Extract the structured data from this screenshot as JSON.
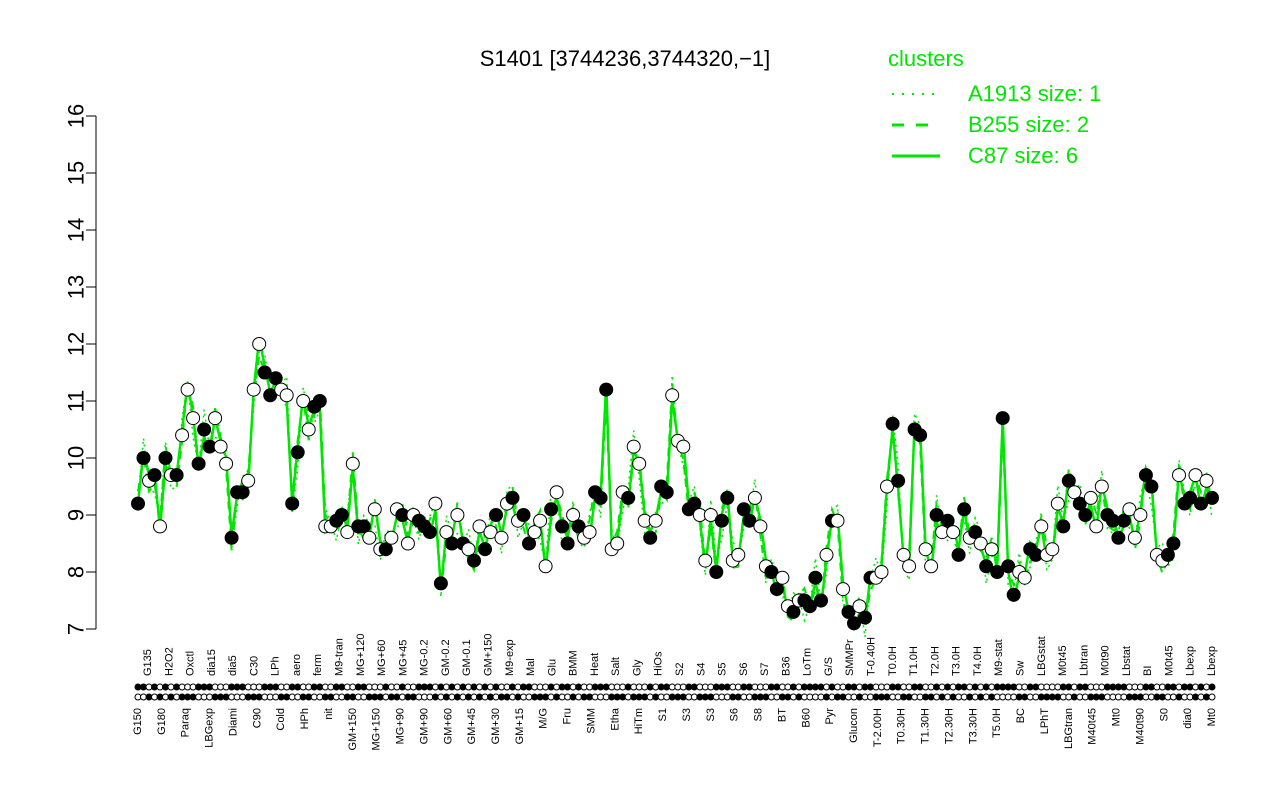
{
  "chart_data": {
    "type": "line",
    "title": "S1401 [3744236,3744320,−1]",
    "xlabel": "",
    "ylabel": "",
    "ylim": [
      7,
      16
    ],
    "y_ticks": [
      7,
      8,
      9,
      10,
      11,
      12,
      13,
      14,
      15,
      16
    ],
    "grid": false,
    "legend": {
      "title": "clusters",
      "placement": "top-right",
      "entries": [
        {
          "label": "A1913 size: 1",
          "style": "dotted"
        },
        {
          "label": "B255 size: 2",
          "style": "dashed"
        },
        {
          "label": "C87 size: 6",
          "style": "solid"
        }
      ]
    },
    "colors": {
      "series": "#00e600",
      "point_dark": "#000000",
      "point_light": "#ffffff"
    },
    "x_labels_top": [
      "G135",
      "H2O2",
      "Oxctl",
      "dia15",
      "dia5",
      "C30",
      "LPh",
      "aero",
      "ferm",
      "M9-tran",
      "MG+120",
      "MG+60",
      "MG+45",
      "MG-0.2",
      "GM-0.2",
      "GM-0.1",
      "GM+150",
      "M9-exp",
      "Mal",
      "Glu",
      "BMM",
      "Heat",
      "Salt",
      "Gly",
      "HiOs",
      "S2",
      "S4",
      "S5",
      "S6",
      "S7",
      "B36",
      "LoTm",
      "G/S",
      "SMMPr",
      "T-0.40H",
      "T0.0H",
      "T1.0H",
      "T2.0H",
      "T3.0H",
      "T4.0H",
      "M9-stat",
      "Sw",
      "LBGstat",
      "M0t45",
      "Lbtran",
      "M0t90",
      "Lbstat",
      "BI",
      "M0t45",
      "Lbexp",
      "Lbexp"
    ],
    "x_labels_bottom": [
      "G150",
      "G180",
      "Paraq",
      "LBGexp",
      "Diami",
      "C90",
      "Cold",
      "HPh",
      "nit",
      "GM+150",
      "MG+150",
      "MG+90",
      "GM+90",
      "GM+60",
      "GM+45",
      "GM+30",
      "GM+15",
      "M/G",
      "Fru",
      "SMM",
      "Etha",
      "HiTm",
      "S1",
      "S3",
      "S3",
      "S6",
      "S8",
      "BT",
      "B60",
      "Pyr",
      "Glucon",
      "T-2.00H",
      "T0.30H",
      "T1.30H",
      "T2.30H",
      "T3.30H",
      "T5.0H",
      "BC",
      "LPhT",
      "LBGtran",
      "M40t45",
      "Mt0",
      "M40t90",
      "S0",
      "dia0",
      "Mt0"
    ],
    "points": [
      {
        "x": 1,
        "y": 9.2,
        "f": 1
      },
      {
        "x": 2,
        "y": 10.0,
        "f": 1
      },
      {
        "x": 3,
        "y": 9.6,
        "f": 0
      },
      {
        "x": 4,
        "y": 9.7,
        "f": 1
      },
      {
        "x": 5,
        "y": 8.8,
        "f": 0
      },
      {
        "x": 6,
        "y": 10.0,
        "f": 1
      },
      {
        "x": 7,
        "y": 9.7,
        "f": 0
      },
      {
        "x": 8,
        "y": 9.7,
        "f": 1
      },
      {
        "x": 9,
        "y": 10.4,
        "f": 0
      },
      {
        "x": 10,
        "y": 11.2,
        "f": 0
      },
      {
        "x": 11,
        "y": 10.7,
        "f": 0
      },
      {
        "x": 12,
        "y": 9.9,
        "f": 1
      },
      {
        "x": 13,
        "y": 10.5,
        "f": 1
      },
      {
        "x": 14,
        "y": 10.2,
        "f": 1
      },
      {
        "x": 15,
        "y": 10.7,
        "f": 0
      },
      {
        "x": 16,
        "y": 10.2,
        "f": 0
      },
      {
        "x": 17,
        "y": 9.9,
        "f": 0
      },
      {
        "x": 18,
        "y": 8.6,
        "f": 1
      },
      {
        "x": 19,
        "y": 9.4,
        "f": 1
      },
      {
        "x": 20,
        "y": 9.4,
        "f": 1
      },
      {
        "x": 21,
        "y": 9.6,
        "f": 0
      },
      {
        "x": 22,
        "y": 11.2,
        "f": 0
      },
      {
        "x": 23,
        "y": 12.0,
        "f": 0
      },
      {
        "x": 24,
        "y": 11.5,
        "f": 1
      },
      {
        "x": 25,
        "y": 11.1,
        "f": 1
      },
      {
        "x": 26,
        "y": 11.4,
        "f": 1
      },
      {
        "x": 27,
        "y": 11.2,
        "f": 0
      },
      {
        "x": 28,
        "y": 11.1,
        "f": 0
      },
      {
        "x": 29,
        "y": 9.2,
        "f": 1
      },
      {
        "x": 30,
        "y": 10.1,
        "f": 1
      },
      {
        "x": 31,
        "y": 11.0,
        "f": 0
      },
      {
        "x": 32,
        "y": 10.5,
        "f": 0
      },
      {
        "x": 33,
        "y": 10.9,
        "f": 1
      },
      {
        "x": 34,
        "y": 11.0,
        "f": 1
      },
      {
        "x": 35,
        "y": 8.8,
        "f": 0
      },
      {
        "x": 36,
        "y": 8.8,
        "f": 0
      },
      {
        "x": 37,
        "y": 8.9,
        "f": 1
      },
      {
        "x": 38,
        "y": 9.0,
        "f": 1
      },
      {
        "x": 39,
        "y": 8.7,
        "f": 0
      },
      {
        "x": 40,
        "y": 9.9,
        "f": 0
      },
      {
        "x": 41,
        "y": 8.8,
        "f": 1
      },
      {
        "x": 42,
        "y": 8.8,
        "f": 1
      },
      {
        "x": 43,
        "y": 8.6,
        "f": 0
      },
      {
        "x": 44,
        "y": 9.1,
        "f": 0
      },
      {
        "x": 45,
        "y": 8.4,
        "f": 0
      },
      {
        "x": 46,
        "y": 8.4,
        "f": 1
      },
      {
        "x": 47,
        "y": 8.6,
        "f": 0
      },
      {
        "x": 48,
        "y": 9.1,
        "f": 0
      },
      {
        "x": 49,
        "y": 9.0,
        "f": 1
      },
      {
        "x": 50,
        "y": 8.5,
        "f": 0
      },
      {
        "x": 51,
        "y": 9.0,
        "f": 0
      },
      {
        "x": 52,
        "y": 8.9,
        "f": 1
      },
      {
        "x": 53,
        "y": 8.8,
        "f": 1
      },
      {
        "x": 54,
        "y": 8.7,
        "f": 1
      },
      {
        "x": 55,
        "y": 9.2,
        "f": 0
      },
      {
        "x": 56,
        "y": 7.8,
        "f": 1
      },
      {
        "x": 57,
        "y": 8.7,
        "f": 0
      },
      {
        "x": 58,
        "y": 8.5,
        "f": 1
      },
      {
        "x": 59,
        "y": 9.0,
        "f": 0
      },
      {
        "x": 60,
        "y": 8.5,
        "f": 1
      },
      {
        "x": 61,
        "y": 8.4,
        "f": 0
      },
      {
        "x": 62,
        "y": 8.2,
        "f": 1
      },
      {
        "x": 63,
        "y": 8.8,
        "f": 0
      },
      {
        "x": 64,
        "y": 8.4,
        "f": 1
      },
      {
        "x": 65,
        "y": 8.7,
        "f": 0
      },
      {
        "x": 66,
        "y": 9.0,
        "f": 1
      },
      {
        "x": 67,
        "y": 8.6,
        "f": 0
      },
      {
        "x": 68,
        "y": 9.2,
        "f": 0
      },
      {
        "x": 69,
        "y": 9.3,
        "f": 1
      },
      {
        "x": 70,
        "y": 8.9,
        "f": 0
      },
      {
        "x": 71,
        "y": 9.0,
        "f": 1
      },
      {
        "x": 72,
        "y": 8.5,
        "f": 1
      },
      {
        "x": 73,
        "y": 8.7,
        "f": 0
      },
      {
        "x": 74,
        "y": 8.9,
        "f": 0
      },
      {
        "x": 75,
        "y": 8.1,
        "f": 0
      },
      {
        "x": 76,
        "y": 9.1,
        "f": 1
      },
      {
        "x": 77,
        "y": 9.4,
        "f": 0
      },
      {
        "x": 78,
        "y": 8.8,
        "f": 1
      },
      {
        "x": 79,
        "y": 8.5,
        "f": 1
      },
      {
        "x": 80,
        "y": 9.0,
        "f": 0
      },
      {
        "x": 81,
        "y": 8.8,
        "f": 1
      },
      {
        "x": 82,
        "y": 8.6,
        "f": 0
      },
      {
        "x": 83,
        "y": 8.7,
        "f": 0
      },
      {
        "x": 84,
        "y": 9.4,
        "f": 1
      },
      {
        "x": 85,
        "y": 9.3,
        "f": 1
      },
      {
        "x": 86,
        "y": 11.2,
        "f": 1
      },
      {
        "x": 87,
        "y": 8.4,
        "f": 0
      },
      {
        "x": 88,
        "y": 8.5,
        "f": 0
      },
      {
        "x": 89,
        "y": 9.4,
        "f": 0
      },
      {
        "x": 90,
        "y": 9.3,
        "f": 1
      },
      {
        "x": 91,
        "y": 10.2,
        "f": 0
      },
      {
        "x": 92,
        "y": 9.9,
        "f": 0
      },
      {
        "x": 93,
        "y": 8.9,
        "f": 0
      },
      {
        "x": 94,
        "y": 8.6,
        "f": 1
      },
      {
        "x": 95,
        "y": 8.9,
        "f": 0
      },
      {
        "x": 96,
        "y": 9.5,
        "f": 1
      },
      {
        "x": 97,
        "y": 9.4,
        "f": 1
      },
      {
        "x": 98,
        "y": 11.1,
        "f": 0
      },
      {
        "x": 99,
        "y": 10.3,
        "f": 0
      },
      {
        "x": 100,
        "y": 10.2,
        "f": 0
      },
      {
        "x": 101,
        "y": 9.1,
        "f": 1
      },
      {
        "x": 102,
        "y": 9.2,
        "f": 1
      },
      {
        "x": 103,
        "y": 9.0,
        "f": 0
      },
      {
        "x": 104,
        "y": 8.2,
        "f": 0
      },
      {
        "x": 105,
        "y": 9.0,
        "f": 0
      },
      {
        "x": 106,
        "y": 8.0,
        "f": 1
      },
      {
        "x": 107,
        "y": 8.9,
        "f": 1
      },
      {
        "x": 108,
        "y": 9.3,
        "f": 1
      },
      {
        "x": 109,
        "y": 8.2,
        "f": 0
      },
      {
        "x": 110,
        "y": 8.3,
        "f": 0
      },
      {
        "x": 111,
        "y": 9.1,
        "f": 1
      },
      {
        "x": 112,
        "y": 8.9,
        "f": 1
      },
      {
        "x": 113,
        "y": 9.3,
        "f": 0
      },
      {
        "x": 114,
        "y": 8.8,
        "f": 0
      },
      {
        "x": 115,
        "y": 8.1,
        "f": 0
      },
      {
        "x": 116,
        "y": 8.0,
        "f": 1
      },
      {
        "x": 117,
        "y": 7.7,
        "f": 1
      },
      {
        "x": 118,
        "y": 7.9,
        "f": 0
      },
      {
        "x": 119,
        "y": 7.4,
        "f": 0
      },
      {
        "x": 120,
        "y": 7.3,
        "f": 1
      },
      {
        "x": 121,
        "y": 7.5,
        "f": 0
      },
      {
        "x": 122,
        "y": 7.5,
        "f": 1
      },
      {
        "x": 123,
        "y": 7.4,
        "f": 1
      },
      {
        "x": 124,
        "y": 7.9,
        "f": 1
      },
      {
        "x": 125,
        "y": 7.5,
        "f": 1
      },
      {
        "x": 126,
        "y": 8.3,
        "f": 0
      },
      {
        "x": 127,
        "y": 8.9,
        "f": 1
      },
      {
        "x": 128,
        "y": 8.9,
        "f": 0
      },
      {
        "x": 129,
        "y": 7.7,
        "f": 0
      },
      {
        "x": 130,
        "y": 7.3,
        "f": 1
      },
      {
        "x": 131,
        "y": 7.1,
        "f": 1
      },
      {
        "x": 132,
        "y": 7.4,
        "f": 0
      },
      {
        "x": 133,
        "y": 7.2,
        "f": 1
      },
      {
        "x": 134,
        "y": 7.9,
        "f": 1
      },
      {
        "x": 135,
        "y": 7.9,
        "f": 0
      },
      {
        "x": 136,
        "y": 8.0,
        "f": 0
      },
      {
        "x": 137,
        "y": 9.5,
        "f": 0
      },
      {
        "x": 138,
        "y": 10.6,
        "f": 1
      },
      {
        "x": 139,
        "y": 9.6,
        "f": 1
      },
      {
        "x": 140,
        "y": 8.3,
        "f": 0
      },
      {
        "x": 141,
        "y": 8.1,
        "f": 0
      },
      {
        "x": 142,
        "y": 10.5,
        "f": 1
      },
      {
        "x": 143,
        "y": 10.4,
        "f": 1
      },
      {
        "x": 144,
        "y": 8.4,
        "f": 0
      },
      {
        "x": 145,
        "y": 8.1,
        "f": 0
      },
      {
        "x": 146,
        "y": 9.0,
        "f": 1
      },
      {
        "x": 147,
        "y": 8.7,
        "f": 0
      },
      {
        "x": 148,
        "y": 8.9,
        "f": 1
      },
      {
        "x": 149,
        "y": 8.7,
        "f": 0
      },
      {
        "x": 150,
        "y": 8.3,
        "f": 1
      },
      {
        "x": 151,
        "y": 9.1,
        "f": 1
      },
      {
        "x": 152,
        "y": 8.6,
        "f": 0
      },
      {
        "x": 153,
        "y": 8.7,
        "f": 1
      },
      {
        "x": 154,
        "y": 8.5,
        "f": 0
      },
      {
        "x": 155,
        "y": 8.1,
        "f": 1
      },
      {
        "x": 156,
        "y": 8.4,
        "f": 0
      },
      {
        "x": 157,
        "y": 8.0,
        "f": 1
      },
      {
        "x": 158,
        "y": 10.7,
        "f": 1
      },
      {
        "x": 159,
        "y": 8.1,
        "f": 1
      },
      {
        "x": 160,
        "y": 7.6,
        "f": 1
      },
      {
        "x": 161,
        "y": 8.0,
        "f": 0
      },
      {
        "x": 162,
        "y": 7.9,
        "f": 0
      },
      {
        "x": 163,
        "y": 8.4,
        "f": 1
      },
      {
        "x": 164,
        "y": 8.3,
        "f": 1
      },
      {
        "x": 165,
        "y": 8.8,
        "f": 0
      },
      {
        "x": 166,
        "y": 8.3,
        "f": 0
      },
      {
        "x": 167,
        "y": 8.4,
        "f": 0
      },
      {
        "x": 168,
        "y": 9.2,
        "f": 0
      },
      {
        "x": 169,
        "y": 8.8,
        "f": 1
      },
      {
        "x": 170,
        "y": 9.6,
        "f": 1
      },
      {
        "x": 171,
        "y": 9.4,
        "f": 0
      },
      {
        "x": 172,
        "y": 9.2,
        "f": 1
      },
      {
        "x": 173,
        "y": 9.0,
        "f": 1
      },
      {
        "x": 174,
        "y": 9.3,
        "f": 0
      },
      {
        "x": 175,
        "y": 8.8,
        "f": 0
      },
      {
        "x": 176,
        "y": 9.5,
        "f": 0
      },
      {
        "x": 177,
        "y": 9.0,
        "f": 1
      },
      {
        "x": 178,
        "y": 8.9,
        "f": 1
      },
      {
        "x": 179,
        "y": 8.6,
        "f": 1
      },
      {
        "x": 180,
        "y": 8.9,
        "f": 1
      },
      {
        "x": 181,
        "y": 9.1,
        "f": 0
      },
      {
        "x": 182,
        "y": 8.6,
        "f": 0
      },
      {
        "x": 183,
        "y": 9.0,
        "f": 0
      },
      {
        "x": 184,
        "y": 9.7,
        "f": 1
      },
      {
        "x": 185,
        "y": 9.5,
        "f": 1
      },
      {
        "x": 186,
        "y": 8.3,
        "f": 0
      },
      {
        "x": 187,
        "y": 8.2,
        "f": 0
      },
      {
        "x": 188,
        "y": 8.3,
        "f": 1
      },
      {
        "x": 189,
        "y": 8.5,
        "f": 1
      },
      {
        "x": 190,
        "y": 9.7,
        "f": 0
      },
      {
        "x": 191,
        "y": 9.2,
        "f": 1
      },
      {
        "x": 192,
        "y": 9.3,
        "f": 1
      },
      {
        "x": 193,
        "y": 9.7,
        "f": 0
      },
      {
        "x": 194,
        "y": 9.2,
        "f": 1
      },
      {
        "x": 195,
        "y": 9.6,
        "f": 0
      },
      {
        "x": 196,
        "y": 9.3,
        "f": 1
      }
    ]
  }
}
